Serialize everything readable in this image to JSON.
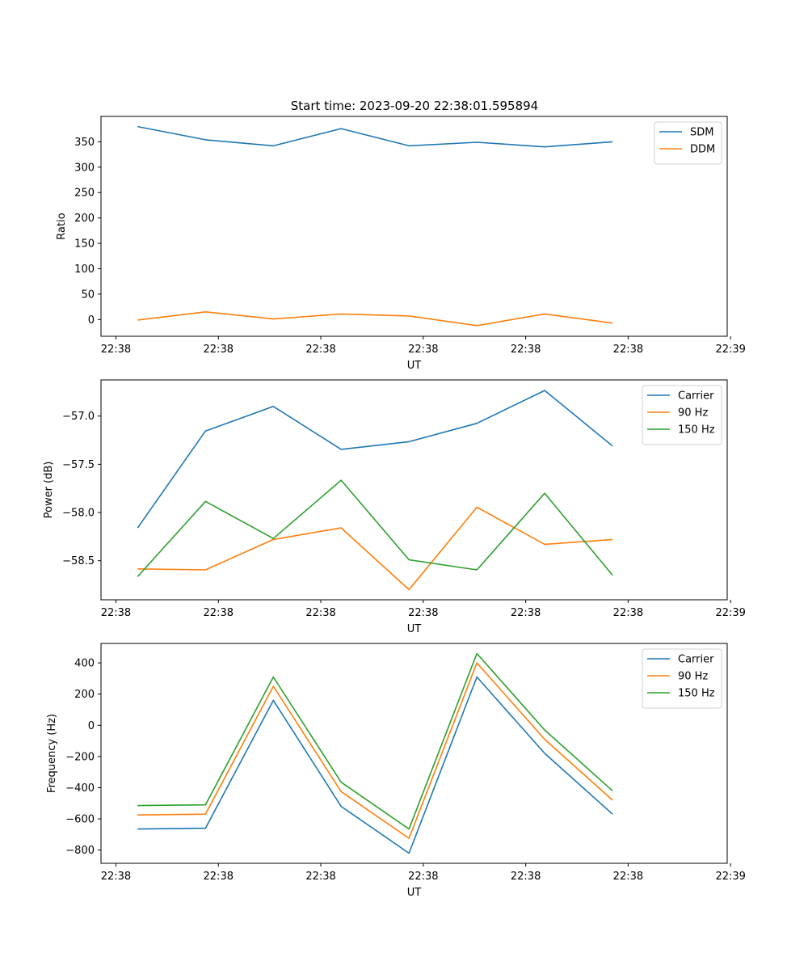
{
  "figure_title": "Start time: 2023-09-20 22:38:01.595894",
  "chart_data": [
    {
      "type": "line",
      "title": "Start time: 2023-09-20 22:38:01.595894",
      "xlabel": "UT",
      "ylabel": "Ratio",
      "x": [
        1,
        2,
        3,
        4,
        5,
        6,
        7,
        8
      ],
      "xlim": [
        0.46,
        9.69
      ],
      "xticks": [
        0.68,
        2.19,
        3.7,
        5.21,
        6.72,
        8.23,
        9.74
      ],
      "xtick_labels": [
        "22:38",
        "22:38",
        "22:38",
        "22:38",
        "22:38",
        "22:38",
        "22:39"
      ],
      "ylim": [
        -33,
        400
      ],
      "yticks": [
        0,
        50,
        100,
        150,
        200,
        250,
        300,
        350
      ],
      "ytick_labels": [
        "0",
        "50",
        "100",
        "150",
        "200",
        "250",
        "300",
        "350"
      ],
      "legend_position": "top-right",
      "series": [
        {
          "name": "SDM",
          "color": "#1f77b4",
          "values": [
            380,
            354,
            342,
            376,
            342,
            349,
            340,
            350
          ]
        },
        {
          "name": "DDM",
          "color": "#ff7f0e",
          "values": [
            -1,
            15,
            1,
            11,
            7,
            -12,
            11,
            -7
          ]
        }
      ]
    },
    {
      "type": "line",
      "title": "",
      "xlabel": "UT",
      "ylabel": "Power (dB)",
      "x": [
        1,
        2,
        3,
        4,
        5,
        6,
        7,
        8
      ],
      "xlim": [
        0.46,
        9.69
      ],
      "xticks": [
        0.68,
        2.19,
        3.7,
        5.21,
        6.72,
        8.23,
        9.74
      ],
      "xtick_labels": [
        "22:38",
        "22:38",
        "22:38",
        "22:38",
        "22:38",
        "22:38",
        "22:39"
      ],
      "ylim": [
        -58.905,
        -56.625
      ],
      "yticks": [
        -58.5,
        -58.0,
        -57.5,
        -57.0
      ],
      "ytick_labels": [
        "−58.5",
        "−58.0",
        "−57.5",
        "−57.0"
      ],
      "legend_position": "top-right",
      "series": [
        {
          "name": "Carrier",
          "color": "#1f77b4",
          "values": [
            -58.16,
            -57.155,
            -56.9,
            -57.345,
            -57.265,
            -57.075,
            -56.735,
            -57.31
          ]
        },
        {
          "name": "90 Hz",
          "color": "#ff7f0e",
          "values": [
            -58.585,
            -58.595,
            -58.28,
            -58.16,
            -58.8,
            -57.945,
            -58.33,
            -58.28
          ]
        },
        {
          "name": "150 Hz",
          "color": "#2ca02c",
          "values": [
            -58.665,
            -57.885,
            -58.27,
            -57.665,
            -58.49,
            -58.595,
            -57.8,
            -58.65
          ]
        }
      ]
    },
    {
      "type": "line",
      "title": "",
      "xlabel": "UT",
      "ylabel": "Frequency (Hz)",
      "x": [
        1,
        2,
        3,
        4,
        5,
        6,
        7,
        8
      ],
      "xlim": [
        0.46,
        9.69
      ],
      "xticks": [
        0.68,
        2.19,
        3.7,
        5.21,
        6.72,
        8.23,
        9.74
      ],
      "xtick_labels": [
        "22:38",
        "22:38",
        "22:38",
        "22:38",
        "22:38",
        "22:38",
        "22:39"
      ],
      "ylim": [
        -885,
        525
      ],
      "yticks": [
        -800,
        -600,
        -400,
        -200,
        0,
        200,
        400
      ],
      "ytick_labels": [
        "−800",
        "−600",
        "−400",
        "−200",
        "0",
        "200",
        "400"
      ],
      "legend_position": "top-right",
      "series": [
        {
          "name": "Carrier",
          "color": "#1f77b4",
          "values": [
            -665,
            -660,
            160,
            -520,
            -820,
            310,
            -180,
            -570
          ]
        },
        {
          "name": "90 Hz",
          "color": "#ff7f0e",
          "values": [
            -575,
            -570,
            250,
            -425,
            -725,
            400,
            -90,
            -480
          ]
        },
        {
          "name": "150 Hz",
          "color": "#2ca02c",
          "values": [
            -515,
            -510,
            310,
            -365,
            -665,
            460,
            -30,
            -420
          ]
        }
      ]
    }
  ]
}
